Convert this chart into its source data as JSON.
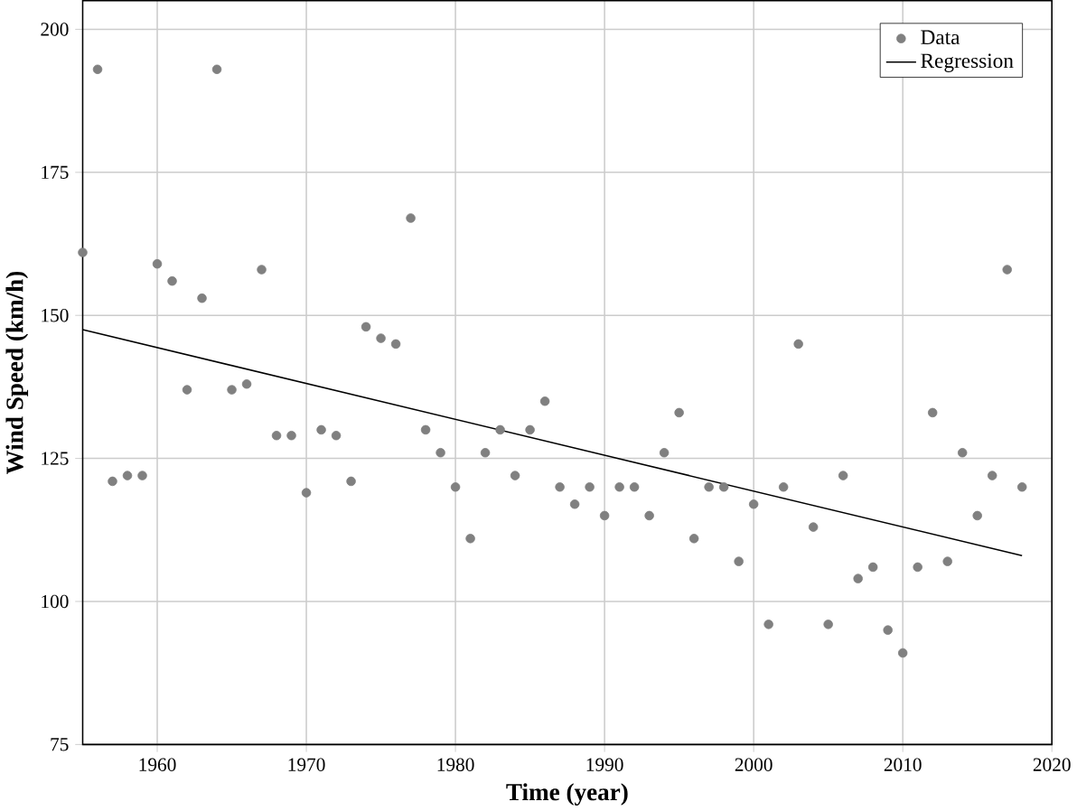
{
  "chart_data": {
    "type": "scatter",
    "xlabel": "**Time (year)**",
    "ylabel": "**Wind Speed (km/h)**",
    "xlim": [
      1955,
      2020
    ],
    "ylim": [
      75,
      205
    ],
    "xticks": [
      1960,
      1970,
      1980,
      1990,
      2000,
      2010,
      2020
    ],
    "yticks": [
      75,
      100,
      125,
      150,
      175,
      200
    ],
    "grid": true,
    "legend": "top right",
    "series": [
      {
        "name": "Data",
        "marker": "circle",
        "color": "#808080",
        "x": [
          1955,
          1956,
          1957,
          1958,
          1959,
          1960,
          1961,
          1962,
          1963,
          1964,
          1965,
          1966,
          1967,
          1968,
          1969,
          1970,
          1971,
          1972,
          1973,
          1974,
          1975,
          1976,
          1977,
          1978,
          1979,
          1980,
          1981,
          1982,
          1983,
          1984,
          1985,
          1986,
          1987,
          1988,
          1989,
          1990,
          1991,
          1992,
          1993,
          1994,
          1995,
          1996,
          1997,
          1998,
          1999,
          2000,
          2001,
          2002,
          2003,
          2004,
          2005,
          2006,
          2007,
          2008,
          2009,
          2010,
          2011,
          2012,
          2013,
          2014,
          2015,
          2016,
          2017,
          2018
        ],
        "values": [
          161,
          193,
          121,
          122,
          122,
          159,
          156,
          137,
          153,
          193,
          137,
          138,
          158,
          129,
          129,
          119,
          130,
          129,
          121,
          148,
          146,
          145,
          167,
          130,
          126,
          120,
          111,
          126,
          130,
          122,
          130,
          135,
          120,
          117,
          120,
          115,
          120,
          120,
          115,
          126,
          133,
          111,
          120,
          120,
          107,
          117,
          96,
          120,
          145,
          113,
          96,
          122,
          104,
          106,
          95,
          91,
          106,
          133,
          107,
          126,
          115,
          122,
          158,
          120
        ]
      },
      {
        "name": "Regression",
        "type": "line",
        "marker": "none",
        "color": "#000000",
        "x": [
          1955,
          2018
        ],
        "values": [
          147.5,
          108
        ]
      }
    ]
  }
}
